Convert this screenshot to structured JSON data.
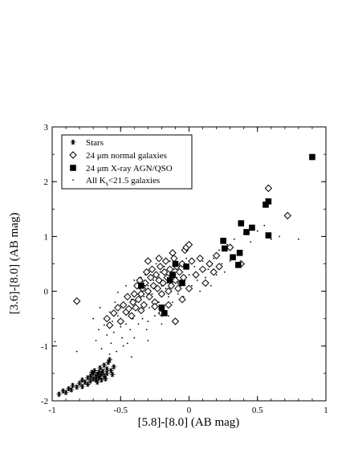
{
  "chart_data": {
    "type": "scatter",
    "xlabel": "[5.8]-[8.0]  (AB mag)",
    "ylabel": "[3.6]-[8.0]  (AB mag)",
    "xlim": [
      -1,
      1
    ],
    "ylim": [
      -2,
      3
    ],
    "xticks": [
      -1,
      -0.5,
      0,
      0.5,
      1
    ],
    "xtick_labels": [
      "-1",
      "-0.5",
      "0",
      "0.5",
      "1"
    ],
    "yticks": [
      -2,
      -1,
      0,
      1,
      2,
      3
    ],
    "ytick_labels": [
      "-2",
      "-1",
      "0",
      "1",
      "2",
      "3"
    ],
    "grid": false,
    "legend_position": "top-left",
    "series": [
      {
        "name": "Stars",
        "marker": "asterisk",
        "color": "#000000",
        "points": [
          [
            -0.95,
            -1.88
          ],
          [
            -0.92,
            -1.82
          ],
          [
            -0.9,
            -1.85
          ],
          [
            -0.88,
            -1.78
          ],
          [
            -0.85,
            -1.72
          ],
          [
            -0.82,
            -1.75
          ],
          [
            -0.8,
            -1.68
          ],
          [
            -0.78,
            -1.62
          ],
          [
            -0.76,
            -1.66
          ],
          [
            -0.74,
            -1.58
          ],
          [
            -0.72,
            -1.55
          ],
          [
            -0.72,
            -1.64
          ],
          [
            -0.7,
            -1.5
          ],
          [
            -0.7,
            -1.6
          ],
          [
            -0.69,
            -1.45
          ],
          [
            -0.68,
            -1.56
          ],
          [
            -0.68,
            -1.62
          ],
          [
            -0.67,
            -1.52
          ],
          [
            -0.66,
            -1.48
          ],
          [
            -0.66,
            -1.58
          ],
          [
            -0.65,
            -1.4
          ],
          [
            -0.65,
            -1.55
          ],
          [
            -0.64,
            -1.5
          ],
          [
            -0.64,
            -1.62
          ],
          [
            -0.63,
            -1.46
          ],
          [
            -0.62,
            -1.55
          ],
          [
            -0.62,
            -1.35
          ],
          [
            -0.61,
            -1.6
          ],
          [
            -0.6,
            -1.5
          ],
          [
            -0.6,
            -1.42
          ],
          [
            -0.59,
            -1.3
          ],
          [
            -0.58,
            -1.25
          ],
          [
            -0.57,
            -1.45
          ],
          [
            -0.56,
            -1.52
          ],
          [
            -0.55,
            -1.38
          ],
          [
            -0.74,
            -1.7
          ],
          [
            -0.78,
            -1.74
          ],
          [
            -0.86,
            -1.8
          ],
          [
            -0.67,
            -1.66
          ],
          [
            -0.71,
            -1.48
          ]
        ]
      },
      {
        "name": "24 μm normal galaxies",
        "marker": "diamond",
        "color": "#000000",
        "points": [
          [
            -0.82,
            -0.18
          ],
          [
            -0.6,
            -0.5
          ],
          [
            -0.58,
            -0.62
          ],
          [
            -0.55,
            -0.4
          ],
          [
            -0.52,
            -0.3
          ],
          [
            -0.5,
            -0.55
          ],
          [
            -0.48,
            -0.25
          ],
          [
            -0.46,
            -0.38
          ],
          [
            -0.45,
            -0.1
          ],
          [
            -0.44,
            -0.32
          ],
          [
            -0.42,
            -0.45
          ],
          [
            -0.41,
            -0.2
          ],
          [
            -0.4,
            -0.05
          ],
          [
            -0.39,
            -0.3
          ],
          [
            -0.38,
            0.1
          ],
          [
            -0.37,
            -0.15
          ],
          [
            -0.36,
            0.2
          ],
          [
            -0.35,
            -0.05
          ],
          [
            -0.34,
            0.05
          ],
          [
            -0.33,
            -0.25
          ],
          [
            -0.32,
            0.15
          ],
          [
            -0.31,
            0.35
          ],
          [
            -0.3,
            0.0
          ],
          [
            -0.29,
            -0.1
          ],
          [
            -0.28,
            0.25
          ],
          [
            -0.27,
            0.4
          ],
          [
            -0.26,
            0.1
          ],
          [
            -0.25,
            -0.2
          ],
          [
            -0.24,
            0.3
          ],
          [
            -0.23,
            0.05
          ],
          [
            -0.22,
            0.2
          ],
          [
            -0.21,
            0.45
          ],
          [
            -0.2,
            -0.05
          ],
          [
            -0.19,
            0.15
          ],
          [
            -0.18,
            0.35
          ],
          [
            -0.17,
            0.55
          ],
          [
            -0.16,
            0.25
          ],
          [
            -0.15,
            0.0
          ],
          [
            -0.14,
            0.4
          ],
          [
            -0.13,
            0.1
          ],
          [
            -0.12,
            0.3
          ],
          [
            -0.11,
            0.6
          ],
          [
            -0.1,
            0.2
          ],
          [
            -0.09,
            0.45
          ],
          [
            -0.08,
            0.05
          ],
          [
            -0.07,
            0.35
          ],
          [
            -0.06,
            0.15
          ],
          [
            -0.05,
            0.5
          ],
          [
            -0.04,
            0.25
          ],
          [
            -0.03,
            0.75
          ],
          [
            -0.02,
            0.8
          ],
          [
            0.0,
            0.85
          ],
          [
            0.02,
            0.55
          ],
          [
            0.05,
            0.3
          ],
          [
            0.08,
            0.6
          ],
          [
            0.1,
            0.4
          ],
          [
            0.12,
            0.15
          ],
          [
            0.15,
            0.5
          ],
          [
            0.18,
            0.35
          ],
          [
            0.2,
            0.65
          ],
          [
            0.22,
            0.45
          ],
          [
            0.3,
            0.8
          ],
          [
            0.38,
            0.5
          ],
          [
            0.58,
            1.88
          ],
          [
            0.72,
            1.38
          ],
          [
            -0.1,
            -0.55
          ],
          [
            -0.2,
            -0.4
          ],
          [
            -0.05,
            -0.15
          ],
          [
            0.0,
            0.05
          ],
          [
            -0.35,
            -0.35
          ],
          [
            -0.25,
            -0.28
          ],
          [
            -0.15,
            -0.25
          ],
          [
            -0.3,
            0.55
          ],
          [
            -0.22,
            0.6
          ],
          [
            -0.12,
            0.7
          ]
        ]
      },
      {
        "name": "24 μm X-ray AGN/QSO",
        "marker": "square",
        "color": "#000000",
        "points": [
          [
            -0.35,
            0.1
          ],
          [
            -0.2,
            -0.3
          ],
          [
            -0.18,
            -0.4
          ],
          [
            -0.14,
            0.2
          ],
          [
            -0.12,
            0.3
          ],
          [
            -0.1,
            0.5
          ],
          [
            -0.05,
            0.15
          ],
          [
            -0.02,
            0.45
          ],
          [
            0.25,
            0.92
          ],
          [
            0.26,
            0.78
          ],
          [
            0.32,
            0.62
          ],
          [
            0.36,
            0.48
          ],
          [
            0.37,
            0.7
          ],
          [
            0.38,
            1.24
          ],
          [
            0.42,
            1.08
          ],
          [
            0.46,
            1.16
          ],
          [
            0.56,
            1.58
          ],
          [
            0.58,
            1.64
          ],
          [
            0.58,
            1.02
          ],
          [
            0.9,
            2.45
          ]
        ]
      },
      {
        "name": "All K<sub>s</sub><21.5 galaxies",
        "marker": "dot",
        "color": "#000000",
        "points": [
          [
            -0.98,
            -0.92
          ],
          [
            -0.82,
            -1.1
          ],
          [
            -0.7,
            -0.5
          ],
          [
            -0.68,
            -0.9
          ],
          [
            -0.66,
            -0.7
          ],
          [
            -0.65,
            -0.3
          ],
          [
            -0.64,
            -1.05
          ],
          [
            -0.62,
            -0.62
          ],
          [
            -0.6,
            -0.8
          ],
          [
            -0.58,
            -0.38
          ],
          [
            -0.57,
            -0.95
          ],
          [
            -0.56,
            -0.55
          ],
          [
            -0.55,
            -0.75
          ],
          [
            -0.54,
            -0.2
          ],
          [
            -0.53,
            -1.1
          ],
          [
            -0.52,
            -0.45
          ],
          [
            -0.5,
            -0.65
          ],
          [
            -0.49,
            -0.85
          ],
          [
            -0.48,
            -0.3
          ],
          [
            -0.47,
            -0.1
          ],
          [
            -0.46,
            -0.6
          ],
          [
            -0.45,
            -0.95
          ],
          [
            -0.44,
            -0.4
          ],
          [
            -0.43,
            -0.7
          ],
          [
            -0.42,
            -0.15
          ],
          [
            -0.41,
            -0.5
          ],
          [
            -0.4,
            -0.85
          ],
          [
            -0.39,
            -0.25
          ],
          [
            -0.38,
            0.05
          ],
          [
            -0.37,
            -0.6
          ],
          [
            -0.36,
            -0.35
          ],
          [
            -0.35,
            0.25
          ],
          [
            -0.34,
            -0.5
          ],
          [
            -0.33,
            -0.1
          ],
          [
            -0.32,
            0.3
          ],
          [
            -0.31,
            -0.7
          ],
          [
            -0.3,
            0.1
          ],
          [
            -0.29,
            -0.3
          ],
          [
            -0.28,
            0.4
          ],
          [
            -0.27,
            -0.05
          ],
          [
            -0.26,
            0.2
          ],
          [
            -0.25,
            -0.45
          ],
          [
            -0.24,
            0.5
          ],
          [
            -0.23,
            0.0
          ],
          [
            -0.22,
            -0.2
          ],
          [
            -0.21,
            0.35
          ],
          [
            -0.2,
            0.1
          ],
          [
            -0.19,
            -0.35
          ],
          [
            -0.18,
            0.45
          ],
          [
            -0.17,
            0.05
          ],
          [
            -0.16,
            0.3
          ],
          [
            -0.15,
            -0.1
          ],
          [
            -0.14,
            0.55
          ],
          [
            -0.13,
            0.15
          ],
          [
            -0.12,
            -0.2
          ],
          [
            -0.11,
            0.4
          ],
          [
            -0.1,
            0.05
          ],
          [
            -0.09,
            0.25
          ],
          [
            -0.08,
            -0.05
          ],
          [
            -0.07,
            0.5
          ],
          [
            -0.06,
            0.1
          ],
          [
            -0.05,
            0.35
          ],
          [
            -0.04,
            -0.1
          ],
          [
            -0.03,
            0.2
          ],
          [
            -0.02,
            0.6
          ],
          [
            0.0,
            0.3
          ],
          [
            0.02,
            0.1
          ],
          [
            0.04,
            0.45
          ],
          [
            0.06,
            0.2
          ],
          [
            0.08,
            0.0
          ],
          [
            0.1,
            0.55
          ],
          [
            0.12,
            0.25
          ],
          [
            0.14,
            0.4
          ],
          [
            0.16,
            0.1
          ],
          [
            0.18,
            0.6
          ],
          [
            0.2,
            0.3
          ],
          [
            0.22,
            0.75
          ],
          [
            0.24,
            0.5
          ],
          [
            0.26,
            0.35
          ],
          [
            0.28,
            0.85
          ],
          [
            0.3,
            0.55
          ],
          [
            0.33,
            0.95
          ],
          [
            0.36,
            0.7
          ],
          [
            0.4,
            1.05
          ],
          [
            0.45,
            0.9
          ],
          [
            0.5,
            1.1
          ],
          [
            0.55,
            1.2
          ],
          [
            0.6,
            0.95
          ],
          [
            0.66,
            1.0
          ],
          [
            0.8,
            0.95
          ],
          [
            -0.52,
            -0.02
          ],
          [
            -0.46,
            0.1
          ],
          [
            -0.4,
            0.2
          ],
          [
            -0.3,
            -0.55
          ],
          [
            -0.2,
            -0.6
          ],
          [
            -0.15,
            -0.45
          ],
          [
            -0.58,
            -1.15
          ],
          [
            -0.48,
            -1.0
          ],
          [
            -0.42,
            -1.2
          ],
          [
            -0.3,
            -0.9
          ]
        ]
      }
    ]
  }
}
